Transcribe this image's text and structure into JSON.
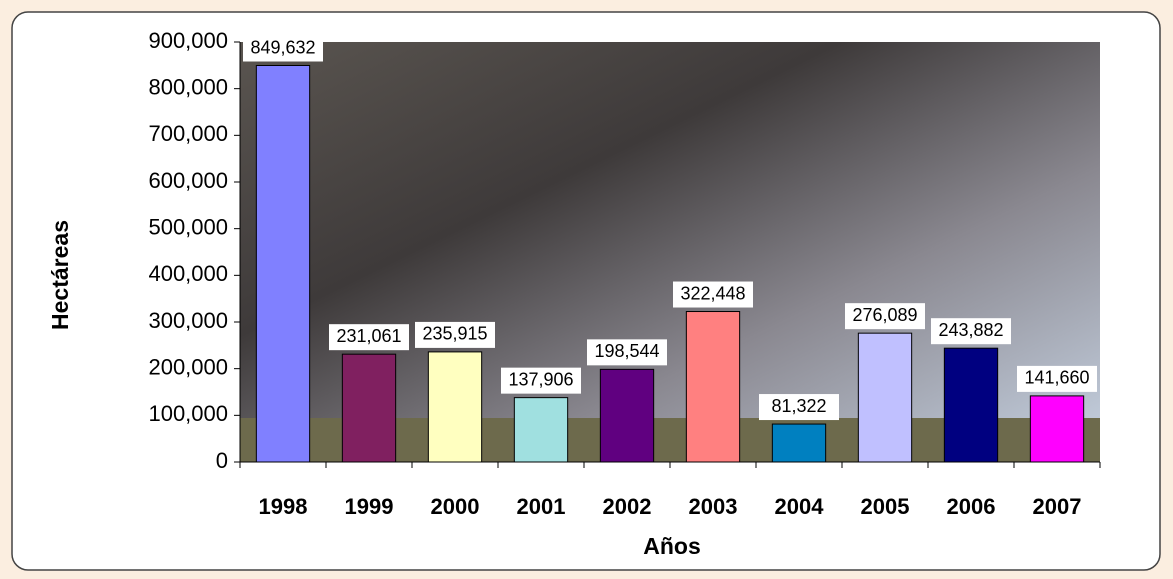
{
  "chart_data": {
    "type": "bar",
    "x_label": "Años",
    "y_label": "Hectáreas",
    "categories": [
      "1998",
      "1999",
      "2000",
      "2001",
      "2002",
      "2003",
      "2004",
      "2005",
      "2006",
      "2007"
    ],
    "values": [
      849632,
      231061,
      235915,
      137906,
      198544,
      322448,
      81322,
      276089,
      243882,
      141660
    ],
    "value_labels": [
      "849,632",
      "231,061",
      "235,915",
      "137,906",
      "198,544",
      "322,448",
      "81,322",
      "276,089",
      "243,882",
      "141,660"
    ],
    "colors": [
      "#8080ff",
      "#802060",
      "#ffffc0",
      "#a0e0e0",
      "#600080",
      "#ff8080",
      "#0080c0",
      "#c0c0ff",
      "#000080",
      "#ff00ff"
    ],
    "ylim": [
      0,
      900000
    ],
    "yticks": [
      0,
      {
        "value": 100000,
        "label": "100,000"
      },
      {
        "value": 200000,
        "label": "200,000"
      },
      {
        "value": 300000,
        "label": "300,000"
      },
      {
        "value": 400000,
        "label": "400,000"
      },
      {
        "value": 500000,
        "label": "500,000"
      },
      {
        "value": 600000,
        "label": "600,000"
      },
      {
        "value": 700000,
        "label": "700,000"
      },
      {
        "value": 800000,
        "label": "800,000"
      },
      {
        "value": 900000,
        "label": "900,000"
      }
    ]
  }
}
